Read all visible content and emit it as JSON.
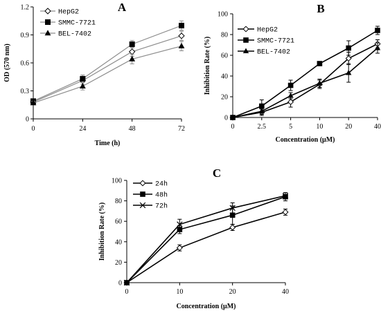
{
  "chart_data": [
    {
      "type": "line",
      "panel_label": "A",
      "xlabel": "Time (h)",
      "ylabel": "OD (570 nm)",
      "categories": [
        "0",
        "24",
        "48",
        "72"
      ],
      "ylim": [
        0,
        1.2
      ],
      "yticks": [
        "0",
        "0.3",
        "0.6",
        "0.9",
        "1.2"
      ],
      "legend_position": "top-left",
      "series": [
        {
          "name": "HepG2",
          "marker": "diamond-open",
          "values": [
            0.18,
            0.41,
            0.72,
            0.89
          ],
          "errors": [
            0.02,
            0.04,
            0.05,
            0.05
          ]
        },
        {
          "name": "SMMC-7721",
          "marker": "square",
          "values": [
            0.19,
            0.43,
            0.8,
            1.0
          ],
          "errors": [
            0.02,
            0.04,
            0.04,
            0.05
          ]
        },
        {
          "name": "BEL-7402",
          "marker": "triangle",
          "values": [
            0.17,
            0.35,
            0.64,
            0.78
          ],
          "errors": [
            0.02,
            0.04,
            0.05,
            0.05
          ]
        }
      ]
    },
    {
      "type": "line",
      "panel_label": "B",
      "xlabel": "Concentration (μM)",
      "ylabel": "Inhibition Rate (%)",
      "categories": [
        "0",
        "2.5",
        "5",
        "10",
        "20",
        "40"
      ],
      "ylim": [
        0,
        100
      ],
      "yticks": [
        "0",
        "20",
        "40",
        "60",
        "80",
        "100"
      ],
      "legend_position": "top-left",
      "series": [
        {
          "name": "HepG2",
          "marker": "diamond-open",
          "values": [
            0,
            5,
            15,
            32,
            57,
            71
          ],
          "errors": [
            1,
            3,
            5,
            4,
            6,
            4
          ]
        },
        {
          "name": "SMMC-7721",
          "marker": "square",
          "values": [
            0,
            11,
            31,
            52,
            67,
            84
          ],
          "errors": [
            1,
            6,
            5,
            2,
            7,
            4
          ]
        },
        {
          "name": "BEL-7402",
          "marker": "triangle",
          "values": [
            0,
            6,
            21,
            33,
            43,
            67
          ],
          "errors": [
            1,
            3,
            3,
            4,
            9,
            5
          ]
        }
      ]
    },
    {
      "type": "line",
      "panel_label": "C",
      "xlabel": "Concentration (μM)",
      "ylabel": "Inhibition Rate (%)",
      "categories": [
        "0",
        "10",
        "20",
        "40"
      ],
      "ylim": [
        0,
        100
      ],
      "yticks": [
        "0",
        "20",
        "40",
        "60",
        "80",
        "100"
      ],
      "legend_position": "top-left",
      "series": [
        {
          "name": "24h",
          "marker": "diamond-open",
          "values": [
            0,
            34,
            54,
            69
          ],
          "errors": [
            0,
            3,
            3,
            3
          ]
        },
        {
          "name": "48h",
          "marker": "square",
          "values": [
            0,
            52,
            66,
            84
          ],
          "errors": [
            0,
            4,
            9,
            4
          ]
        },
        {
          "name": "72h",
          "marker": "x",
          "values": [
            0,
            57,
            73,
            85
          ],
          "errors": [
            0,
            5,
            5,
            3
          ]
        }
      ]
    }
  ]
}
